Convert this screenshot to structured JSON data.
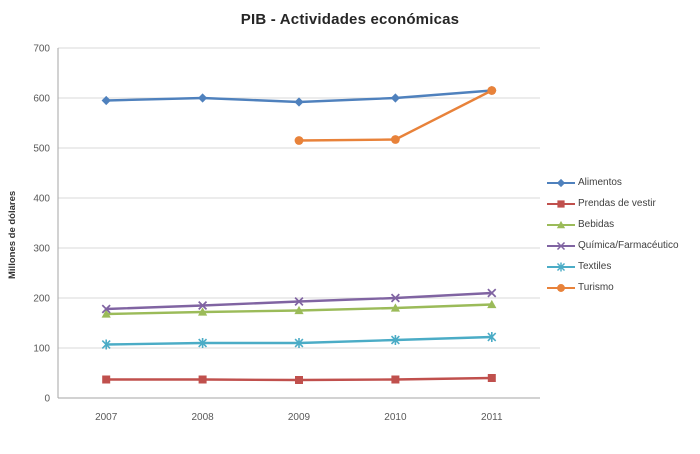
{
  "chart_data": {
    "type": "line",
    "title": "PIB - Actividades económicas",
    "xlabel": "",
    "ylabel": "Millones de dólares",
    "categories": [
      "2007",
      "2008",
      "2009",
      "2010",
      "2011"
    ],
    "ylim": [
      0,
      700
    ],
    "yticks": [
      0,
      100,
      200,
      300,
      400,
      500,
      600,
      700
    ],
    "grid": true,
    "legend_position": "right",
    "series": [
      {
        "name": "Alimentos",
        "marker": "diamond",
        "color": "#4F81BD",
        "values": [
          595,
          600,
          592,
          600,
          615
        ]
      },
      {
        "name": "Prendas de vestir",
        "marker": "square",
        "color": "#C0504D",
        "values": [
          37,
          37,
          36,
          37,
          40
        ]
      },
      {
        "name": "Bebidas",
        "marker": "triangle",
        "color": "#9BBB59",
        "values": [
          168,
          172,
          175,
          180,
          187
        ]
      },
      {
        "name": "Química/Farmacéutico",
        "marker": "x",
        "color": "#8064A2",
        "values": [
          178,
          185,
          193,
          200,
          210
        ]
      },
      {
        "name": "Textiles",
        "marker": "asterisk",
        "color": "#4BACC6",
        "values": [
          107,
          110,
          110,
          116,
          122
        ]
      },
      {
        "name": "Turismo",
        "marker": "circle",
        "color": "#E8823A",
        "values": [
          null,
          null,
          515,
          517,
          615
        ]
      }
    ],
    "style": {
      "gridline_color": "#D9D9D9",
      "axis_color": "#A6A6A6",
      "tick_label_color": "#595959"
    }
  }
}
